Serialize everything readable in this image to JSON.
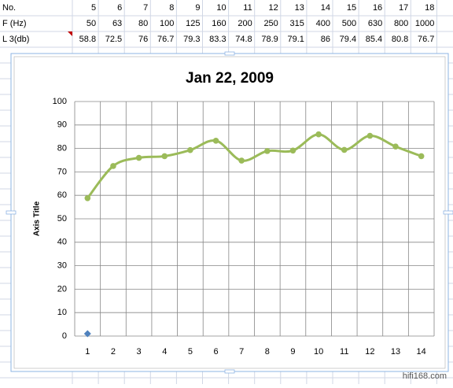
{
  "table": {
    "rows": [
      [
        "No.",
        5,
        6,
        7,
        8,
        9,
        10,
        11,
        12,
        13,
        14,
        15,
        16,
        17,
        18
      ],
      [
        "F (Hz)",
        50,
        63,
        80,
        100,
        125,
        160,
        200,
        250,
        315,
        400,
        500,
        630,
        800,
        1000
      ],
      [
        "L 3(db)",
        58.8,
        72.5,
        76,
        76.7,
        79.3,
        83.3,
        74.8,
        78.9,
        79.1,
        86,
        79.4,
        85.4,
        80.8,
        76.7
      ]
    ]
  },
  "chart_data": {
    "type": "line",
    "title": "Jan 22, 2009",
    "y_label": "Axis Title",
    "categories": [
      1,
      2,
      3,
      4,
      5,
      6,
      7,
      8,
      9,
      10,
      11,
      12,
      13,
      14
    ],
    "series": [
      {
        "color": "#9bbb59",
        "smooth": true,
        "values": [
          58.8,
          72.5,
          76,
          76.7,
          79.3,
          83.3,
          74.8,
          78.9,
          79.1,
          86,
          79.4,
          85.4,
          80.8,
          76.7
        ]
      },
      {
        "color": "#4f81bd",
        "marker": "diamond",
        "values": [
          1,
          null,
          null,
          null,
          null,
          null,
          null,
          null,
          null,
          null,
          null,
          null,
          null,
          null
        ]
      }
    ],
    "ylim": [
      0,
      100
    ],
    "yticks": [
      0,
      10,
      20,
      30,
      40,
      50,
      60,
      70,
      80,
      90,
      100
    ],
    "grid": true
  },
  "watermark": "hifi168.com"
}
